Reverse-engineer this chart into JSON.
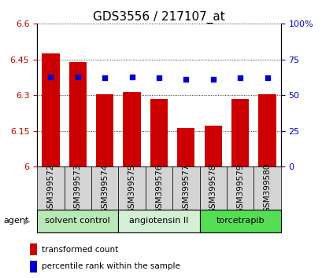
{
  "title": "GDS3556 / 217107_at",
  "samples": [
    "GSM399572",
    "GSM399573",
    "GSM399574",
    "GSM399575",
    "GSM399576",
    "GSM399577",
    "GSM399578",
    "GSM399579",
    "GSM399580"
  ],
  "bar_values": [
    6.475,
    6.44,
    6.305,
    6.315,
    6.285,
    6.163,
    6.172,
    6.283,
    6.305
  ],
  "percentile_values": [
    63,
    63,
    62,
    63,
    62,
    61,
    61,
    62,
    62
  ],
  "ylim_left": [
    6.0,
    6.6
  ],
  "ylim_right": [
    0,
    100
  ],
  "yticks_left": [
    6.0,
    6.15,
    6.3,
    6.45,
    6.6
  ],
  "yticks_right": [
    0,
    25,
    50,
    75,
    100
  ],
  "ytick_labels_left": [
    "6",
    "6.15",
    "6.3",
    "6.45",
    "6.6"
  ],
  "ytick_labels_right": [
    "0",
    "25",
    "50",
    "75",
    "100%"
  ],
  "bar_color": "#cc0000",
  "dot_color": "#0000cc",
  "bar_width": 0.65,
  "groups": [
    {
      "label": "solvent control",
      "indices": [
        0,
        1,
        2
      ],
      "color": "#b8e8b8"
    },
    {
      "label": "angiotensin II",
      "indices": [
        3,
        4,
        5
      ],
      "color": "#d4f0d4"
    },
    {
      "label": "torcetrapib",
      "indices": [
        6,
        7,
        8
      ],
      "color": "#55dd55"
    }
  ],
  "agent_label": "agent",
  "legend_bar_label": "transformed count",
  "legend_dot_label": "percentile rank within the sample",
  "background_xticklabels": "#d4d4d4",
  "title_fontsize": 11,
  "tick_fontsize": 8,
  "label_fontsize": 7.5,
  "group_fontsize": 8
}
